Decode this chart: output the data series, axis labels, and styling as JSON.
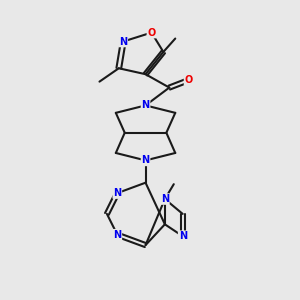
{
  "background_color": "#e8e8e8",
  "bond_color": "#1a1a1a",
  "atom_colors": {
    "N": "#0000ee",
    "O": "#ee0000",
    "C": "#1a1a1a"
  },
  "figsize": [
    3.0,
    3.0
  ],
  "dpi": 100
}
